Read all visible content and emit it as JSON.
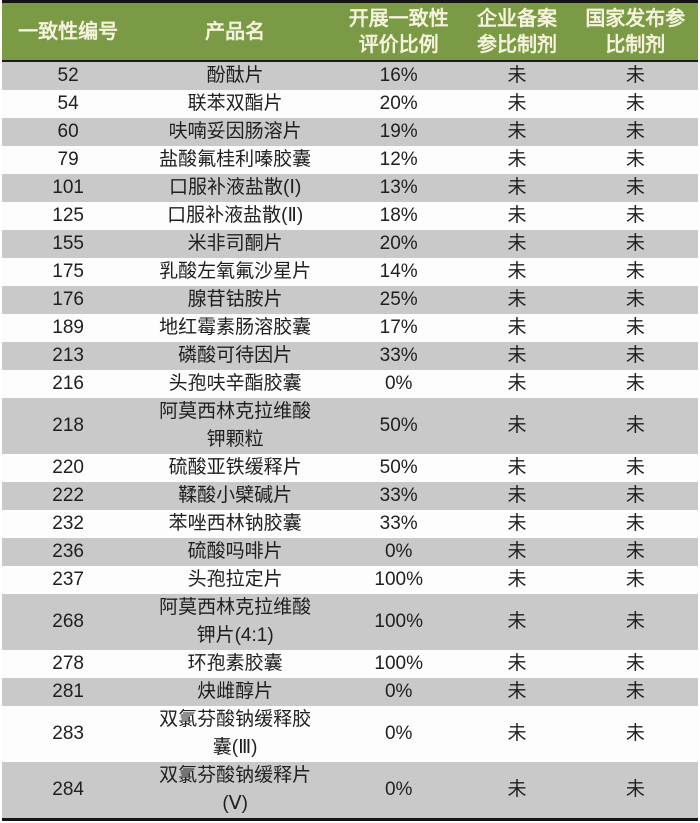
{
  "colors": {
    "header_bg": "#7a9a45",
    "header_text": "#f6f3dd",
    "row_gray": "#c9c9c9",
    "row_white": "#fdfdfd",
    "border_dark": "#141414",
    "body_text": "#1f1f1f"
  },
  "table": {
    "columns": [
      {
        "label": "一致性编号"
      },
      {
        "label": "产品名"
      },
      {
        "label": "开展一致性评价比例"
      },
      {
        "label": "企业备案参比制剂"
      },
      {
        "label": "国家发布参比制剂"
      }
    ],
    "rows": [
      {
        "id": "52",
        "product": "酚酞片",
        "ratio": "16%",
        "enterprise": "未",
        "national": "未"
      },
      {
        "id": "54",
        "product": "联苯双酯片",
        "ratio": "20%",
        "enterprise": "未",
        "national": "未"
      },
      {
        "id": "60",
        "product": "呋喃妥因肠溶片",
        "ratio": "19%",
        "enterprise": "未",
        "national": "未"
      },
      {
        "id": "79",
        "product": "盐酸氟桂利嗪胶囊",
        "ratio": "12%",
        "enterprise": "未",
        "national": "未"
      },
      {
        "id": "101",
        "product": "口服补液盐散(Ⅰ)",
        "ratio": "13%",
        "enterprise": "未",
        "national": "未"
      },
      {
        "id": "125",
        "product": "口服补液盐散(Ⅱ)",
        "ratio": "18%",
        "enterprise": "未",
        "national": "未"
      },
      {
        "id": "155",
        "product": "米非司酮片",
        "ratio": "20%",
        "enterprise": "未",
        "national": "未"
      },
      {
        "id": "175",
        "product": "乳酸左氧氟沙星片",
        "ratio": "14%",
        "enterprise": "未",
        "national": "未"
      },
      {
        "id": "176",
        "product": "腺苷钴胺片",
        "ratio": "25%",
        "enterprise": "未",
        "national": "未"
      },
      {
        "id": "189",
        "product": "地红霉素肠溶胶囊",
        "ratio": "17%",
        "enterprise": "未",
        "national": "未"
      },
      {
        "id": "213",
        "product": "磷酸可待因片",
        "ratio": "33%",
        "enterprise": "未",
        "national": "未"
      },
      {
        "id": "216",
        "product": "头孢呋辛酯胶囊",
        "ratio": "0%",
        "enterprise": "未",
        "national": "未"
      },
      {
        "id": "218",
        "product": "阿莫西林克拉维酸钾颗粒",
        "ratio": "50%",
        "enterprise": "未",
        "national": "未"
      },
      {
        "id": "220",
        "product": "硫酸亚铁缓释片",
        "ratio": "50%",
        "enterprise": "未",
        "national": "未"
      },
      {
        "id": "222",
        "product": "鞣酸小檗碱片",
        "ratio": "33%",
        "enterprise": "未",
        "national": "未"
      },
      {
        "id": "232",
        "product": "苯唑西林钠胶囊",
        "ratio": "33%",
        "enterprise": "未",
        "national": "未"
      },
      {
        "id": "236",
        "product": "硫酸吗啡片",
        "ratio": "0%",
        "enterprise": "未",
        "national": "未"
      },
      {
        "id": "237",
        "product": "头孢拉定片",
        "ratio": "100%",
        "enterprise": "未",
        "national": "未"
      },
      {
        "id": "268",
        "product": "阿莫西林克拉维酸钾片(4:1)",
        "ratio": "100%",
        "enterprise": "未",
        "national": "未"
      },
      {
        "id": "278",
        "product": "环孢素胶囊",
        "ratio": "100%",
        "enterprise": "未",
        "national": "未"
      },
      {
        "id": "281",
        "product": "炔雌醇片",
        "ratio": "0%",
        "enterprise": "未",
        "national": "未"
      },
      {
        "id": "283",
        "product": "双氯芬酸钠缓释胶囊(Ⅲ)",
        "ratio": "0%",
        "enterprise": "未",
        "national": "未"
      },
      {
        "id": "284",
        "product": "双氯芬酸钠缓释片(Ⅴ)",
        "ratio": "0%",
        "enterprise": "未",
        "national": "未"
      }
    ]
  }
}
